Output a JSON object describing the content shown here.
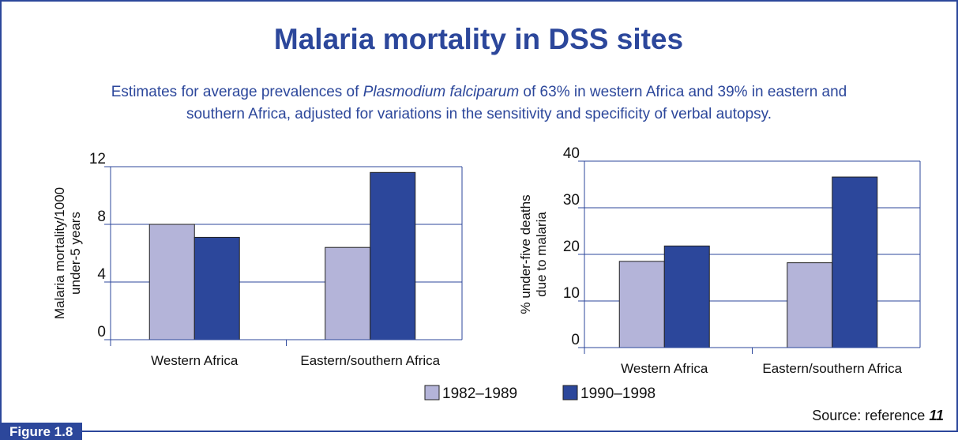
{
  "title": "Malaria mortality in DSS sites",
  "subtitle": {
    "before": "Estimates for average prevalences of ",
    "italic": "Plasmodium falciparum",
    "after": " of 63% in western Africa and 39% in eastern and southern Africa, adjusted for variations in the sensitivity and specificity of verbal autopsy."
  },
  "source": {
    "text": "Source: reference",
    "ref": "11"
  },
  "figure_label": "Figure 1.8",
  "chart_data": [
    {
      "type": "bar",
      "ylabel": [
        "Malaria mortality/1000",
        "under-5 years"
      ],
      "categories": [
        "Western Africa",
        "Eastern/southern Africa"
      ],
      "series": [
        {
          "name": "1982–1989",
          "color": "#b4b4d9",
          "values": [
            8.0,
            6.4
          ]
        },
        {
          "name": "1990–1998",
          "color": "#2c479b",
          "values": [
            7.1,
            11.6
          ]
        }
      ],
      "ylim": [
        0,
        12
      ],
      "yticks": [
        0,
        4,
        8,
        12
      ],
      "grid": true
    },
    {
      "type": "bar",
      "ylabel": [
        "% under-five deaths",
        "due to malaria"
      ],
      "categories": [
        "Western Africa",
        "Eastern/southern Africa"
      ],
      "series": [
        {
          "name": "1982–1989",
          "color": "#b4b4d9",
          "values": [
            18.5,
            18.2
          ]
        },
        {
          "name": "1990–1998",
          "color": "#2c479b",
          "values": [
            21.8,
            36.6
          ]
        }
      ],
      "ylim": [
        0,
        40
      ],
      "yticks": [
        0,
        10,
        20,
        30,
        40
      ],
      "grid": true
    }
  ]
}
